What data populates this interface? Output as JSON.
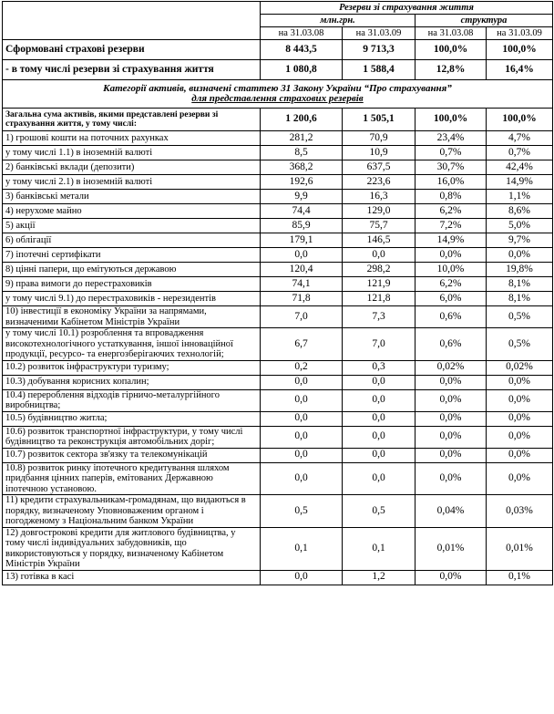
{
  "header": {
    "title": "Резерви зі страхування життя",
    "unit": "млн.грн.",
    "structure": "структура",
    "dates": [
      "на 31.03.08",
      "на 31.03.09",
      "на 31.03.08",
      "на 31.03.09"
    ]
  },
  "top_rows": [
    [
      "Сформовані страхові резерви",
      "8 443,5",
      "9 713,3",
      "100,0%",
      "100,0%"
    ],
    [
      "- в тому числі резерви зі страхування життя",
      "1 080,8",
      "1 588,4",
      "12,8%",
      "16,4%"
    ]
  ],
  "section": {
    "line1": "Категорії активів, визначені статтею 31 Закону України “Про страхування”",
    "line2": "для представлення  страхових  резервів"
  },
  "rows": [
    [
      "Загальна сума активів, якими представлені резерви зі страхування життя, у тому числі:",
      "1 200,6",
      "1 505,1",
      "100,0%",
      "100,0%"
    ],
    [
      "1) грошові кошти на поточних рахунках",
      "281,2",
      "70,9",
      "23,4%",
      "4,7%"
    ],
    [
      "у тому числі   1.1) в іноземній  валюті",
      "8,5",
      "10,9",
      "0,7%",
      "0,7%"
    ],
    [
      "2) банківські вклади  (депозити)",
      "368,2",
      "637,5",
      "30,7%",
      "42,4%"
    ],
    [
      "у тому числі   2.1) в іноземній  валюті",
      "192,6",
      "223,6",
      "16,0%",
      "14,9%"
    ],
    [
      "3) банківські метали",
      "9,9",
      "16,3",
      "0,8%",
      "1,1%"
    ],
    [
      "4) нерухоме майно",
      "74,4",
      "129,0",
      "6,2%",
      "8,6%"
    ],
    [
      "5) акції",
      "85,9",
      "75,7",
      "7,2%",
      "5,0%"
    ],
    [
      "6) облігації",
      "179,1",
      "146,5",
      "14,9%",
      "9,7%"
    ],
    [
      "7) іпотечні сертифікати",
      "0,0",
      "0,0",
      "0,0%",
      "0,0%"
    ],
    [
      "8) цінні папери, що емітуються  державою",
      "120,4",
      "298,2",
      "10,0%",
      "19,8%"
    ],
    [
      "9) права вимоги до перестраховиків",
      "74,1",
      "121,9",
      "6,2%",
      "8,1%"
    ],
    [
      "у тому числі 9.1) до перестраховиків - нерезидентів",
      "71,8",
      "121,8",
      "6,0%",
      "8,1%"
    ],
    [
      "10) інвестиції в економіку України за напрямами, визначеними Кабінетом Міністрів України",
      "7,0",
      "7,3",
      "0,6%",
      "0,5%"
    ],
    [
      "у тому числі  10.1) розроблення та впровадження високотехнологічного устаткування, іншої інноваційної продукції, ресурсо- та енергозберігаючих технологій;",
      "6,7",
      "7,0",
      "0,6%",
      "0,5%"
    ],
    [
      "10.2) розвиток інфраструктури туризму;",
      "0,2",
      "0,3",
      "0,02%",
      "0,02%"
    ],
    [
      "10.3) добування корисних копалин;",
      "0,0",
      "0,0",
      "0,0%",
      "0,0%"
    ],
    [
      "10.4) перероблення відходів гірничо-металургійного виробництва;",
      "0,0",
      "0,0",
      "0,0%",
      "0,0%"
    ],
    [
      "10.5) будівництво житла;",
      "0,0",
      "0,0",
      "0,0%",
      "0,0%"
    ],
    [
      "10.6) розвиток транспортної інфраструктури, у тому числі будівництво та реконструкція автомобільних доріг;",
      "0,0",
      "0,0",
      "0,0%",
      "0,0%"
    ],
    [
      "10.7) розвиток сектора зв'язку та телекомунікацій",
      "0,0",
      "0,0",
      "0,0%",
      "0,0%"
    ],
    [
      "10.8) розвиток ринку іпотечного кредитування шляхом придбання цінних паперів, емітованих Державною іпотечною установою.",
      "0,0",
      "0,0",
      "0,0%",
      "0,0%"
    ],
    [
      "11) кредити страхувальникам-громадянам, що видаються в порядку, визначеному Уповноваженим органом і погодженому з Національним банком України",
      "0,5",
      "0,5",
      "0,04%",
      "0,03%"
    ],
    [
      "12) довгострокові кредити для житлового будівництва, у тому числі  індивідуальних забудовників, що використовуються у порядку, визначеному Кабінетом Міністрів України",
      "0,1",
      "0,1",
      "0,01%",
      "0,01%"
    ],
    [
      "13)  готівка в касі",
      "0,0",
      "1,2",
      "0,0%",
      "0,1%"
    ]
  ]
}
